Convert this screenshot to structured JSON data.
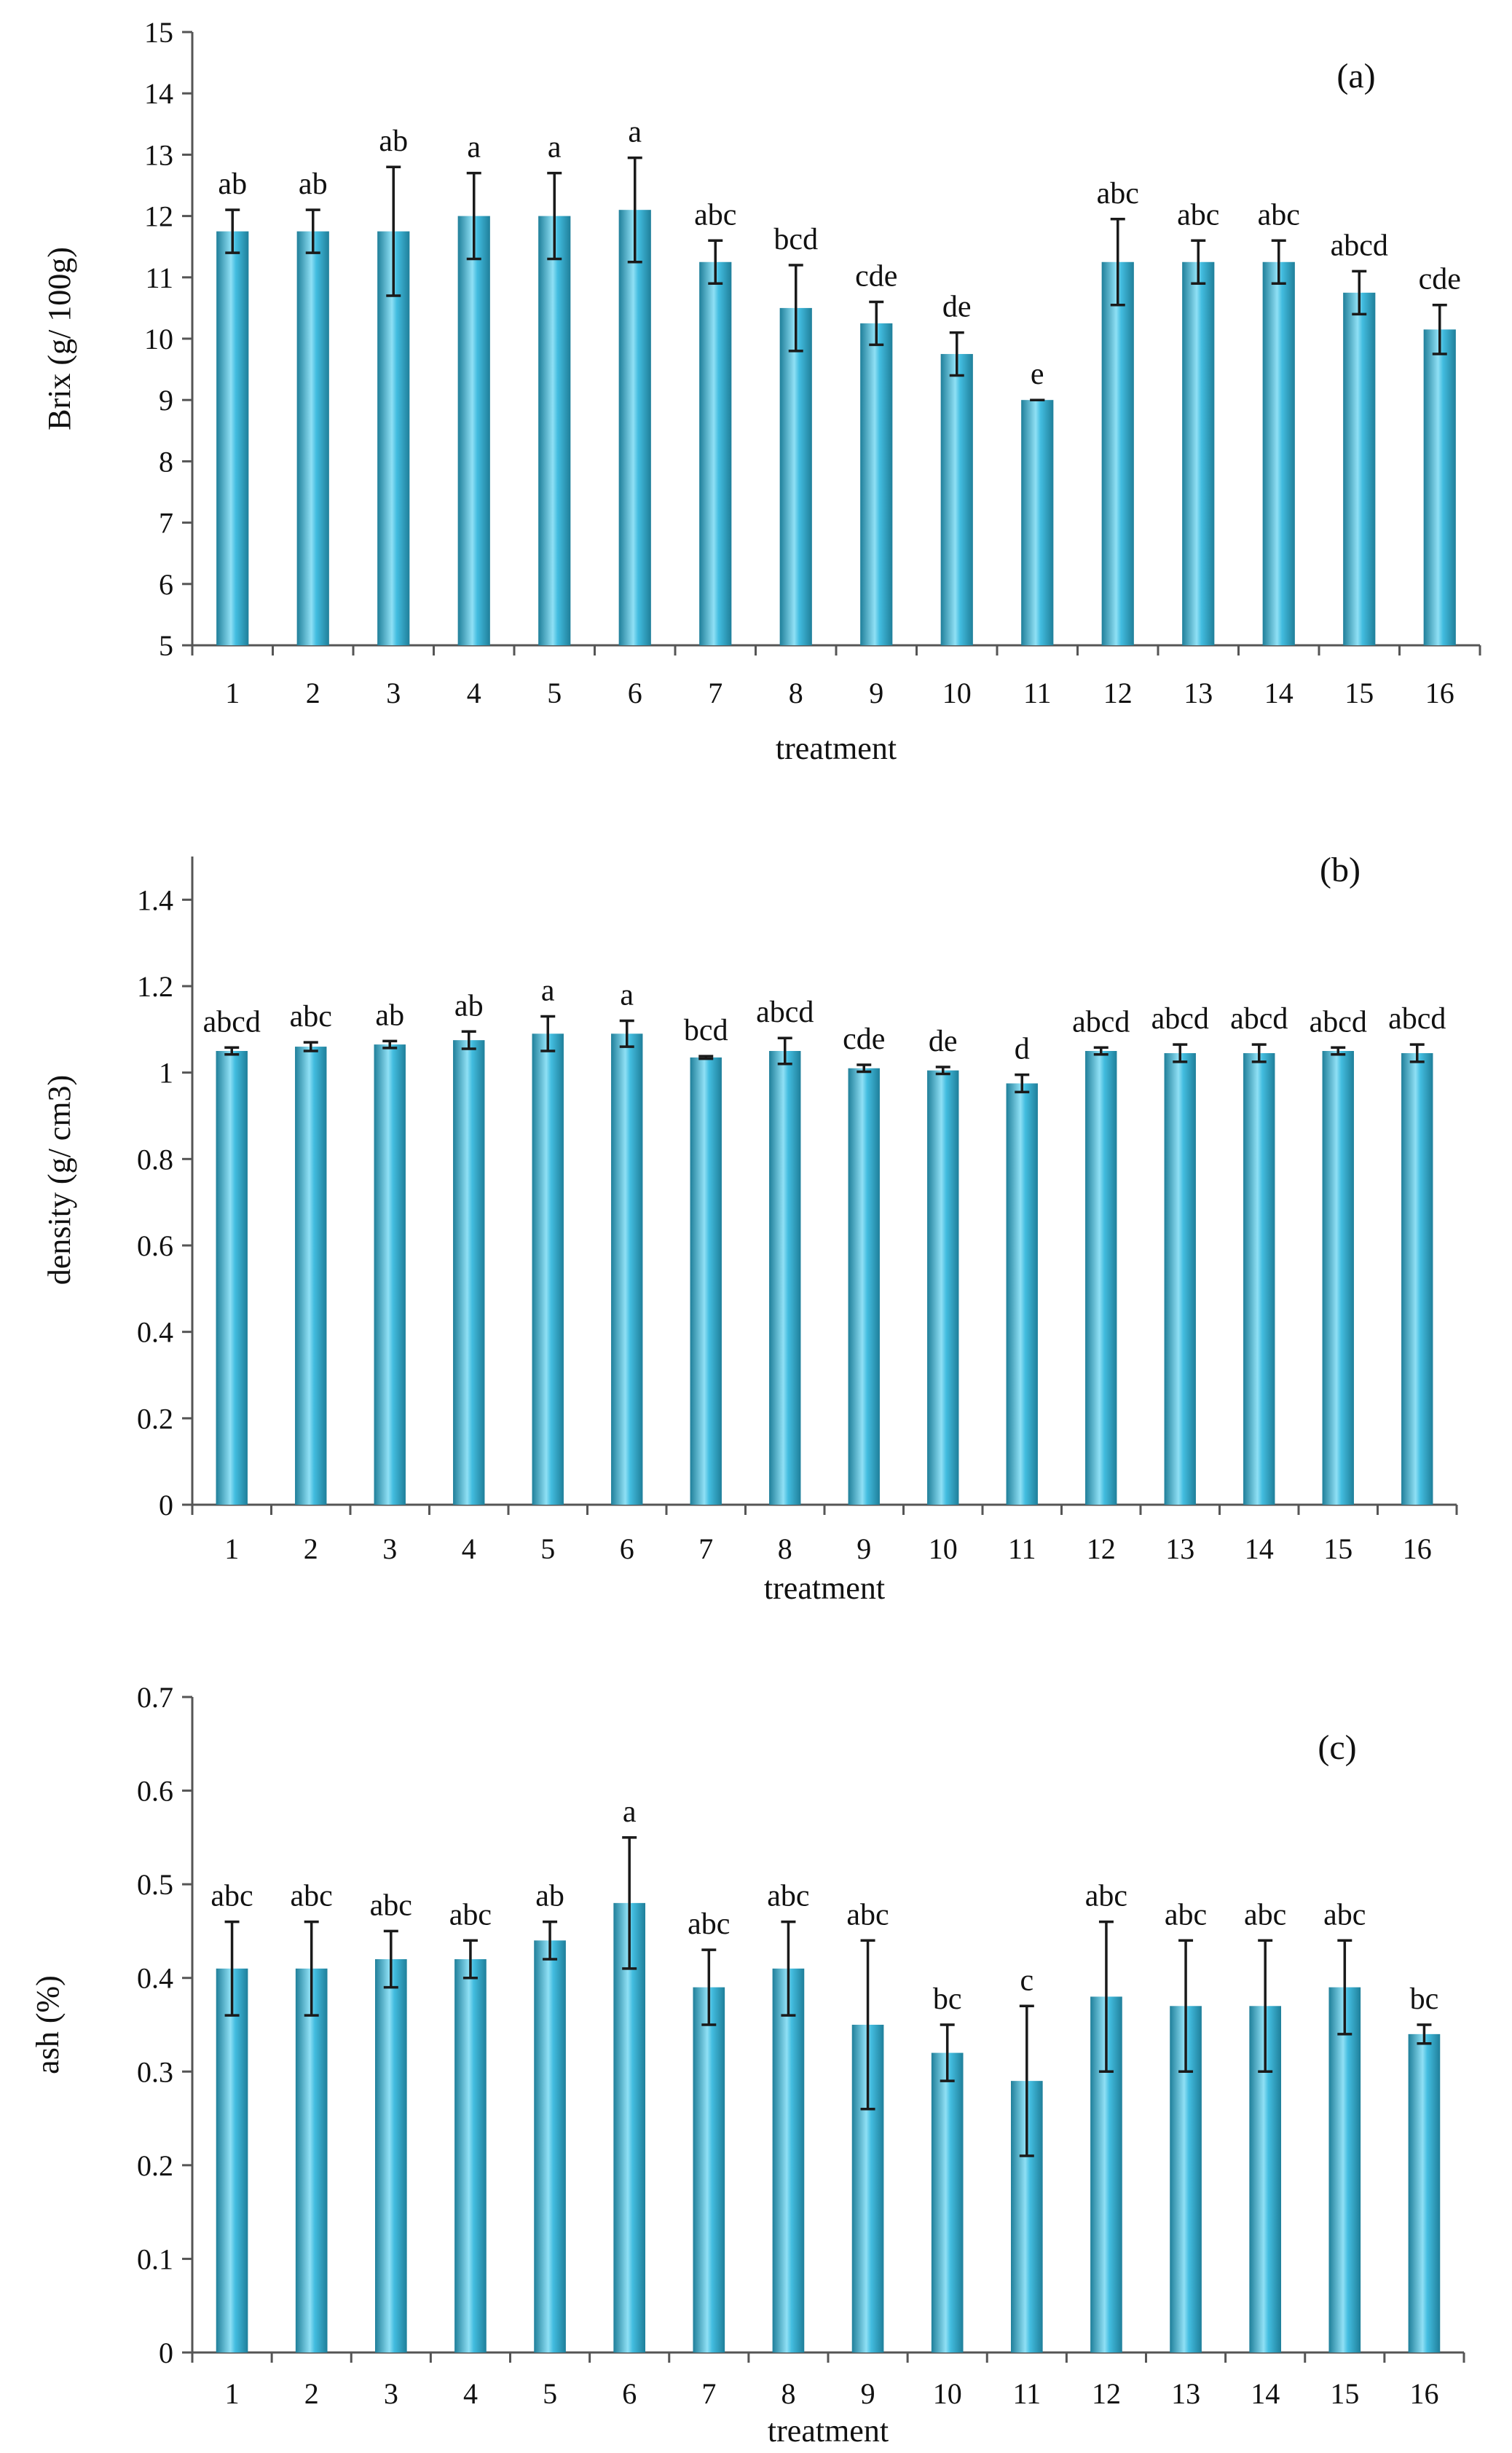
{
  "colors": {
    "bar_edge": "#1f7f9a",
    "bar_mid": "#43bde0",
    "bar_light": "#8fe0f5",
    "axis": "#555555",
    "text": "#111111"
  },
  "chart_data": [
    {
      "type": "bar",
      "panel_label": "(a)",
      "categories": [
        "1",
        "2",
        "3",
        "4",
        "5",
        "6",
        "7",
        "8",
        "9",
        "10",
        "11",
        "12",
        "13",
        "14",
        "15",
        "16"
      ],
      "values": [
        11.75,
        11.75,
        11.75,
        12.0,
        12.0,
        12.1,
        11.25,
        10.5,
        10.25,
        9.75,
        9.0,
        11.25,
        11.25,
        11.25,
        10.75,
        10.15
      ],
      "errors": [
        0.35,
        0.35,
        1.05,
        0.7,
        0.7,
        0.85,
        0.35,
        0.7,
        0.35,
        0.35,
        0.0,
        0.7,
        0.35,
        0.35,
        0.35,
        0.4
      ],
      "letters": [
        "ab",
        "ab",
        "ab",
        "a",
        "a",
        "a",
        "abc",
        "bcd",
        "cde",
        "de",
        "e",
        "abc",
        "abc",
        "abc",
        "abcd",
        "cde"
      ],
      "xlabel": "treatment",
      "ylabel": "Brix (g/ 100g)",
      "ylim": [
        5,
        15
      ],
      "yticks": [
        "5",
        "6",
        "7",
        "8",
        "9",
        "10",
        "11",
        "12",
        "13",
        "14",
        "15"
      ],
      "grid": false
    },
    {
      "type": "bar",
      "panel_label": "(b)",
      "categories": [
        "1",
        "2",
        "3",
        "4",
        "5",
        "6",
        "7",
        "8",
        "9",
        "10",
        "11",
        "12",
        "13",
        "14",
        "15",
        "16"
      ],
      "values": [
        1.05,
        1.06,
        1.065,
        1.075,
        1.09,
        1.09,
        1.035,
        1.05,
        1.01,
        1.005,
        0.975,
        1.05,
        1.045,
        1.045,
        1.05,
        1.045
      ],
      "errors": [
        0.008,
        0.01,
        0.008,
        0.02,
        0.04,
        0.03,
        0.003,
        0.03,
        0.008,
        0.008,
        0.02,
        0.008,
        0.02,
        0.02,
        0.008,
        0.02
      ],
      "letters": [
        "abcd",
        "abc",
        "ab",
        "ab",
        "a",
        "a",
        "bcd",
        "abcd",
        "cde",
        "de",
        "d",
        "abcd",
        "abcd",
        "abcd",
        "abcd",
        "abcd"
      ],
      "xlabel": "treatment",
      "ylabel": "density (g/ cm3)",
      "ylim": [
        0,
        1.5
      ],
      "yticks": [
        "0",
        "0.2",
        "0.4",
        "0.6",
        "0.8",
        "1",
        "1.2",
        "1.4"
      ],
      "grid": false
    },
    {
      "type": "bar",
      "panel_label": "(c)",
      "categories": [
        "1",
        "2",
        "3",
        "4",
        "5",
        "6",
        "7",
        "8",
        "9",
        "10",
        "11",
        "12",
        "13",
        "14",
        "15",
        "16"
      ],
      "values": [
        0.41,
        0.41,
        0.42,
        0.42,
        0.44,
        0.48,
        0.39,
        0.41,
        0.35,
        0.32,
        0.29,
        0.38,
        0.37,
        0.37,
        0.39,
        0.34
      ],
      "errors": [
        0.05,
        0.05,
        0.03,
        0.02,
        0.02,
        0.07,
        0.04,
        0.05,
        0.09,
        0.03,
        0.08,
        0.08,
        0.07,
        0.07,
        0.05,
        0.01
      ],
      "letters": [
        "abc",
        "abc",
        "abc",
        "abc",
        "ab",
        "a",
        "abc",
        "abc",
        "abc",
        "bc",
        "c",
        "abc",
        "abc",
        "abc",
        "abc",
        "bc"
      ],
      "xlabel": "treatment",
      "ylabel": "ash (%)",
      "ylim": [
        0,
        0.7
      ],
      "yticks": [
        "0",
        "0.1",
        "0.2",
        "0.3",
        "0.4",
        "0.5",
        "0.6",
        "0.7"
      ],
      "grid": false
    }
  ]
}
